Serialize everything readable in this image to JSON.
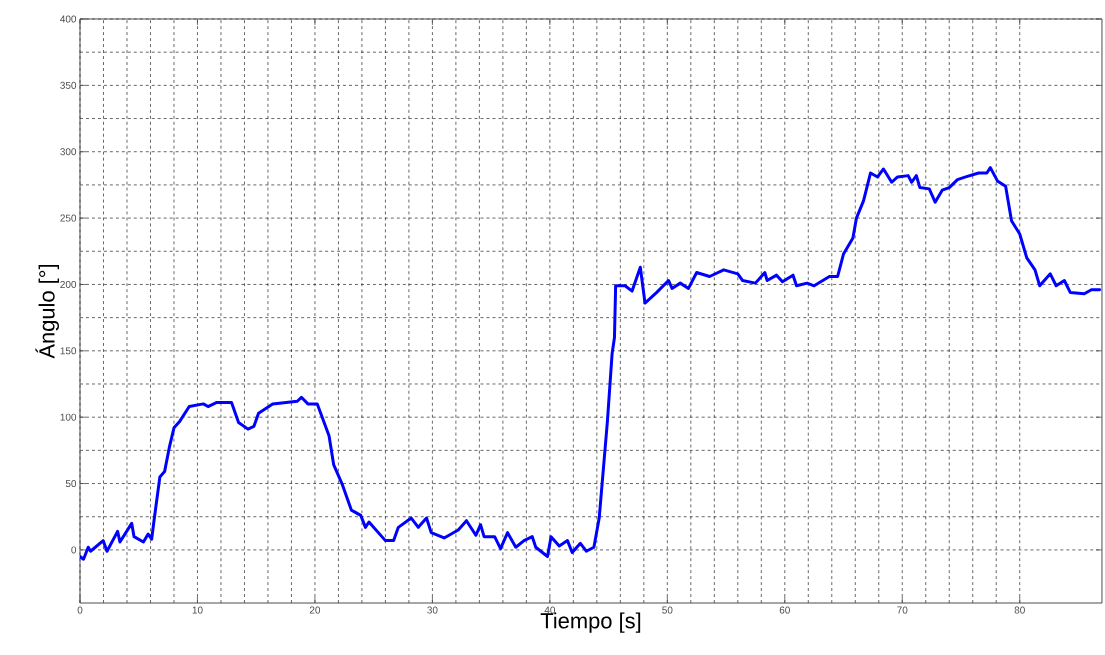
{
  "chart_data": {
    "type": "line",
    "xlabel": "Tiempo [s]",
    "ylabel": "Ángulo [°]",
    "xlim": [
      0,
      87
    ],
    "ylim": [
      -40,
      400
    ],
    "xticks": [
      0,
      10,
      20,
      30,
      40,
      50,
      60,
      70,
      80
    ],
    "yticks": [
      0,
      50,
      100,
      150,
      200,
      250,
      300,
      350,
      400
    ],
    "grid": true,
    "marker": "none",
    "line_style": "solid",
    "series": [
      {
        "color": "#0000ff",
        "x": [
          0,
          0.3,
          0.7,
          0.9,
          1.97,
          2.3,
          3.2,
          3.4,
          4.4,
          4.6,
          5.4,
          5.8,
          6.1,
          6.3,
          6.8,
          7.2,
          7.6,
          8.0,
          8.5,
          9.3,
          10.5,
          10.9,
          11.6,
          12.9,
          13.5,
          14.3,
          14.8,
          15.2,
          16.4,
          18.5,
          18.85,
          19.4,
          20.2,
          21.2,
          21.6,
          22.3,
          23.1,
          23.9,
          24.3,
          24.6,
          26.0,
          26.7,
          27.1,
          28.2,
          28.8,
          29.5,
          29.9,
          31.0,
          32.2,
          32.9,
          33.7,
          34.1,
          34.4,
          35.3,
          35.8,
          36.4,
          37.1,
          37.8,
          38.5,
          38.8,
          39.8,
          40.1,
          40.8,
          41.5,
          41.9,
          42.6,
          43.1,
          43.75,
          44.2,
          44.9,
          45.3,
          45.5,
          45.6,
          46.4,
          47.0,
          47.7,
          48.1,
          49.1,
          50.1,
          50.4,
          51.1,
          51.8,
          52.5,
          53.6,
          54.8,
          56.0,
          56.4,
          57.5,
          58.3,
          58.5,
          59.3,
          59.8,
          60.7,
          61.0,
          61.9,
          62.5,
          63.8,
          64.5,
          65.0,
          65.8,
          66.1,
          66.7,
          67.3,
          67.9,
          68.4,
          69.1,
          69.6,
          70.5,
          70.8,
          71.2,
          71.5,
          72.3,
          72.8,
          73.4,
          74.0,
          74.7,
          75.4,
          76.5,
          77.2,
          77.5,
          78.1,
          78.8,
          79.3,
          80.0,
          80.6,
          81.3,
          81.7,
          82.6,
          83.1,
          83.8,
          84.3,
          85.5,
          86.1,
          86.8
        ],
        "values": [
          -5,
          -7,
          2,
          -1,
          7,
          -1,
          14,
          6,
          20,
          10,
          6,
          12,
          8,
          22,
          55,
          59,
          77,
          92,
          97,
          108,
          110,
          108,
          111,
          111,
          96,
          91,
          93,
          103,
          110,
          112,
          115,
          110,
          110,
          86,
          64,
          50,
          30,
          26,
          17,
          21,
          7,
          7,
          17,
          24,
          17,
          24,
          13,
          9,
          15,
          22,
          11,
          19,
          10,
          10,
          1,
          13,
          2,
          7,
          10,
          2,
          -5,
          10,
          3,
          7,
          -2,
          5,
          -1,
          2,
          24,
          97,
          148,
          160,
          199,
          199,
          195,
          213,
          186,
          194,
          203,
          197,
          201,
          197,
          209,
          206,
          211,
          208,
          203,
          201,
          209,
          203,
          207,
          202,
          207,
          199,
          201,
          199,
          206,
          206,
          223,
          235,
          250,
          263,
          284,
          281,
          287,
          277,
          281,
          282,
          277,
          282,
          273,
          272,
          262,
          271,
          273,
          279,
          281,
          284,
          284,
          288,
          278,
          274,
          248,
          238,
          220,
          211,
          199,
          208,
          199,
          203,
          194,
          193,
          196,
          196
        ]
      }
    ]
  }
}
